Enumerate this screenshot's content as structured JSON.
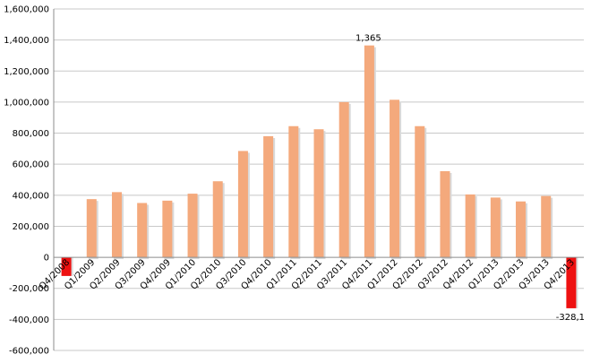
{
  "chart_data": {
    "type": "bar",
    "categories": [
      "Q4/2008",
      "Q1/2009",
      "Q2/2009",
      "Q3/2009",
      "Q4/2009",
      "Q1/2010",
      "Q2/2010",
      "Q3/2010",
      "Q4/2010",
      "Q1/2011",
      "Q2/2011",
      "Q3/2011",
      "Q4/2011",
      "Q1/2012",
      "Q2/2012",
      "Q3/2012",
      "Q4/2012",
      "Q1/2013",
      "Q2/2013",
      "Q3/2013",
      "Q4/2013"
    ],
    "values": [
      -120000,
      375000,
      420000,
      350000,
      365000,
      410000,
      490000,
      685000,
      780000,
      845000,
      825000,
      1000000,
      1365000,
      1015000,
      845000,
      555000,
      405000,
      385000,
      360000,
      395000,
      -328100
    ],
    "ylim": [
      -600000,
      1600000
    ],
    "yticks": [
      -600000,
      -400000,
      -200000,
      0,
      200000,
      400000,
      600000,
      800000,
      1000000,
      1200000,
      1400000,
      1600000
    ],
    "ytick_labels": [
      "-600,000",
      "-400,000",
      "-200,000",
      "0",
      "200,000",
      "400,000",
      "600,000",
      "800,000",
      "1,000,000",
      "1,200,000",
      "1,400,000",
      "1,600,000"
    ],
    "data_labels": [
      {
        "index": 12,
        "text": "1,365"
      },
      {
        "index": 20,
        "text": "-328,1"
      }
    ],
    "colors": {
      "positive": "#f4a97c",
      "negative": "#ee1111",
      "grid": "#c8c8c8",
      "axis": "#8c8c8c"
    },
    "grid": true,
    "title": "",
    "xlabel": "",
    "ylabel": ""
  }
}
